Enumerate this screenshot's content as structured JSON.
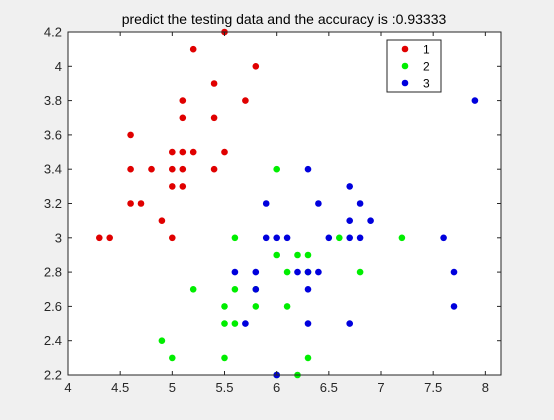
{
  "chart_data": {
    "type": "scatter",
    "title": "predict the testing data and the accuracy is :0.93333",
    "xlabel": "",
    "ylabel": "",
    "xlim": [
      4,
      8.15
    ],
    "ylim": [
      2.2,
      4.2
    ],
    "xticks": [
      "4",
      "4.5",
      "5",
      "5.5",
      "6",
      "6.5",
      "7",
      "7.5",
      "8"
    ],
    "yticks": [
      "2.2",
      "2.4",
      "2.6",
      "2.8",
      "3",
      "3.2",
      "3.4",
      "3.6",
      "3.8",
      "4",
      "4.2"
    ],
    "grid": false,
    "legend_position": "top-right",
    "series": [
      {
        "name": "1",
        "color": "#e00000",
        "points": [
          [
            4.3,
            3.0
          ],
          [
            4.4,
            3.0
          ],
          [
            4.6,
            3.2
          ],
          [
            4.6,
            3.4
          ],
          [
            4.6,
            3.6
          ],
          [
            4.7,
            3.2
          ],
          [
            4.8,
            3.4
          ],
          [
            4.9,
            3.1
          ],
          [
            5.0,
            3.0
          ],
          [
            5.0,
            3.3
          ],
          [
            5.0,
            3.4
          ],
          [
            5.0,
            3.5
          ],
          [
            5.1,
            3.3
          ],
          [
            5.1,
            3.4
          ],
          [
            5.1,
            3.5
          ],
          [
            5.1,
            3.7
          ],
          [
            5.1,
            3.8
          ],
          [
            5.2,
            3.5
          ],
          [
            5.2,
            4.1
          ],
          [
            5.4,
            3.4
          ],
          [
            5.4,
            3.7
          ],
          [
            5.4,
            3.9
          ],
          [
            5.5,
            3.5
          ],
          [
            5.5,
            4.2
          ],
          [
            5.7,
            3.8
          ],
          [
            5.8,
            4.0
          ]
        ]
      },
      {
        "name": "2",
        "color": "#00ee00",
        "points": [
          [
            4.9,
            2.4
          ],
          [
            5.0,
            2.3
          ],
          [
            5.2,
            2.7
          ],
          [
            5.5,
            2.3
          ],
          [
            5.5,
            2.5
          ],
          [
            5.5,
            2.6
          ],
          [
            5.6,
            2.5
          ],
          [
            5.6,
            2.7
          ],
          [
            5.6,
            3.0
          ],
          [
            5.8,
            2.6
          ],
          [
            5.8,
            2.7
          ],
          [
            6.0,
            2.2
          ],
          [
            6.0,
            2.9
          ],
          [
            6.0,
            3.4
          ],
          [
            6.1,
            2.6
          ],
          [
            6.1,
            2.8
          ],
          [
            6.2,
            2.2
          ],
          [
            6.2,
            2.9
          ],
          [
            6.3,
            2.3
          ],
          [
            6.3,
            2.8
          ],
          [
            6.3,
            2.9
          ],
          [
            6.6,
            3.0
          ],
          [
            6.8,
            2.8
          ],
          [
            7.2,
            3.0
          ]
        ]
      },
      {
        "name": "3",
        "color": "#0000dd",
        "points": [
          [
            5.7,
            2.5
          ],
          [
            5.6,
            2.8
          ],
          [
            5.8,
            2.7
          ],
          [
            5.8,
            2.8
          ],
          [
            5.9,
            3.0
          ],
          [
            5.9,
            3.2
          ],
          [
            6.0,
            2.2
          ],
          [
            6.0,
            3.0
          ],
          [
            6.1,
            3.0
          ],
          [
            6.2,
            2.8
          ],
          [
            6.3,
            2.5
          ],
          [
            6.3,
            2.7
          ],
          [
            6.3,
            2.8
          ],
          [
            6.3,
            3.4
          ],
          [
            6.4,
            2.8
          ],
          [
            6.4,
            3.2
          ],
          [
            6.5,
            3.0
          ],
          [
            6.7,
            2.5
          ],
          [
            6.7,
            3.0
          ],
          [
            6.7,
            3.1
          ],
          [
            6.7,
            3.3
          ],
          [
            6.8,
            3.0
          ],
          [
            6.8,
            3.2
          ],
          [
            6.9,
            3.1
          ],
          [
            7.6,
            3.0
          ],
          [
            7.7,
            2.6
          ],
          [
            7.7,
            2.8
          ],
          [
            7.9,
            3.8
          ]
        ]
      }
    ]
  }
}
